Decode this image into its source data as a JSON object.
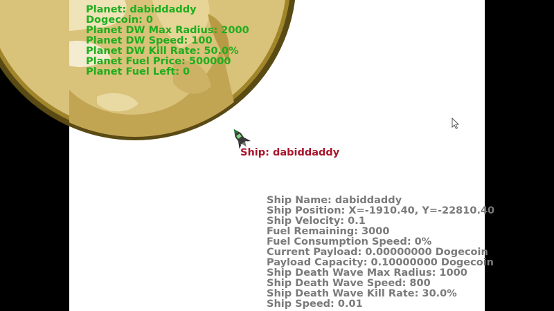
{
  "planet_info": {
    "name": "Planet: dabiddaddy",
    "dogecoin": "Dogecoin: 0",
    "dw_max_radius": "Planet DW Max Radius: 2000",
    "dw_speed": "Planet DW Speed: 100",
    "dw_kill_rate": "Planet DW Kill Rate: 50.0%",
    "fuel_price": "Planet Fuel Price: 500000",
    "fuel_left": "Planet Fuel Left: 0"
  },
  "ship_label": "Ship: dabiddaddy",
  "ship_info": {
    "name": "Ship Name: dabiddaddy",
    "position": "Ship Position: X=-1910.40, Y=-22810.40",
    "velocity": "Ship Velocity: 0.1",
    "fuel_remaining": "Fuel Remaining: 3000",
    "fuel_consumption": "Fuel Consumption Speed: 0%",
    "current_payload": "Current Payload: 0.00000000 Dogecoin",
    "payload_capacity": "Payload Capacity: 0.10000000 Dogecoin",
    "dw_max_radius": "Ship Death Wave Max Radius: 1000",
    "dw_speed": "Ship Death Wave Speed: 800",
    "dw_kill_rate": "Ship Death Wave Kill Rate: 30.0%",
    "speed": "Ship Speed: 0.01"
  },
  "colors": {
    "planet_text": "#1fad1f",
    "ship_label": "#a8152b",
    "ship_info_text": "#7a7a7a",
    "planet_fill": "#d9c27a",
    "planet_rim": "#5a4a14",
    "background": "#ffffff",
    "letterbox": "#000000"
  },
  "icons": {
    "planet": "dogecoin-planet-icon",
    "ship": "rocket-ship-icon",
    "cursor": "mouse-pointer-icon"
  }
}
